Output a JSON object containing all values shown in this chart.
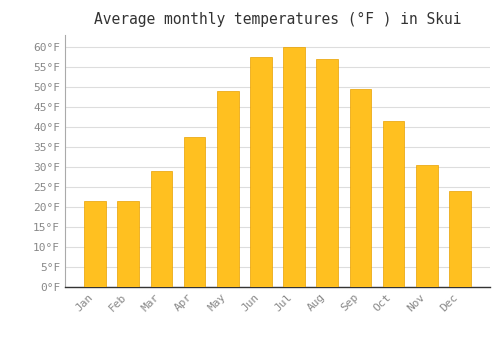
{
  "months": [
    "Jan",
    "Feb",
    "Mar",
    "Apr",
    "May",
    "Jun",
    "Jul",
    "Aug",
    "Sep",
    "Oct",
    "Nov",
    "Dec"
  ],
  "values": [
    21.5,
    21.5,
    29.0,
    37.5,
    49.0,
    57.5,
    60.0,
    57.0,
    49.5,
    41.5,
    30.5,
    24.0
  ],
  "bar_color_top": "#FFC020",
  "bar_color_bottom": "#FFA000",
  "bar_edge_color": "#E8A000",
  "background_color": "#FFFFFF",
  "plot_bg_color": "#FFFFFF",
  "grid_color": "#DDDDDD",
  "title": "Average monthly temperatures (°F ) in Skui",
  "title_fontsize": 10.5,
  "title_font": "monospace",
  "ylim": [
    0,
    63
  ],
  "yticks": [
    0,
    5,
    10,
    15,
    20,
    25,
    30,
    35,
    40,
    45,
    50,
    55,
    60
  ],
  "ytick_labels": [
    "0°F",
    "5°F",
    "10°F",
    "15°F",
    "20°F",
    "25°F",
    "30°F",
    "35°F",
    "40°F",
    "45°F",
    "50°F",
    "55°F",
    "60°F"
  ],
  "tick_font": "monospace",
  "tick_fontsize": 8,
  "xtick_fontsize": 8,
  "bar_width": 0.65
}
